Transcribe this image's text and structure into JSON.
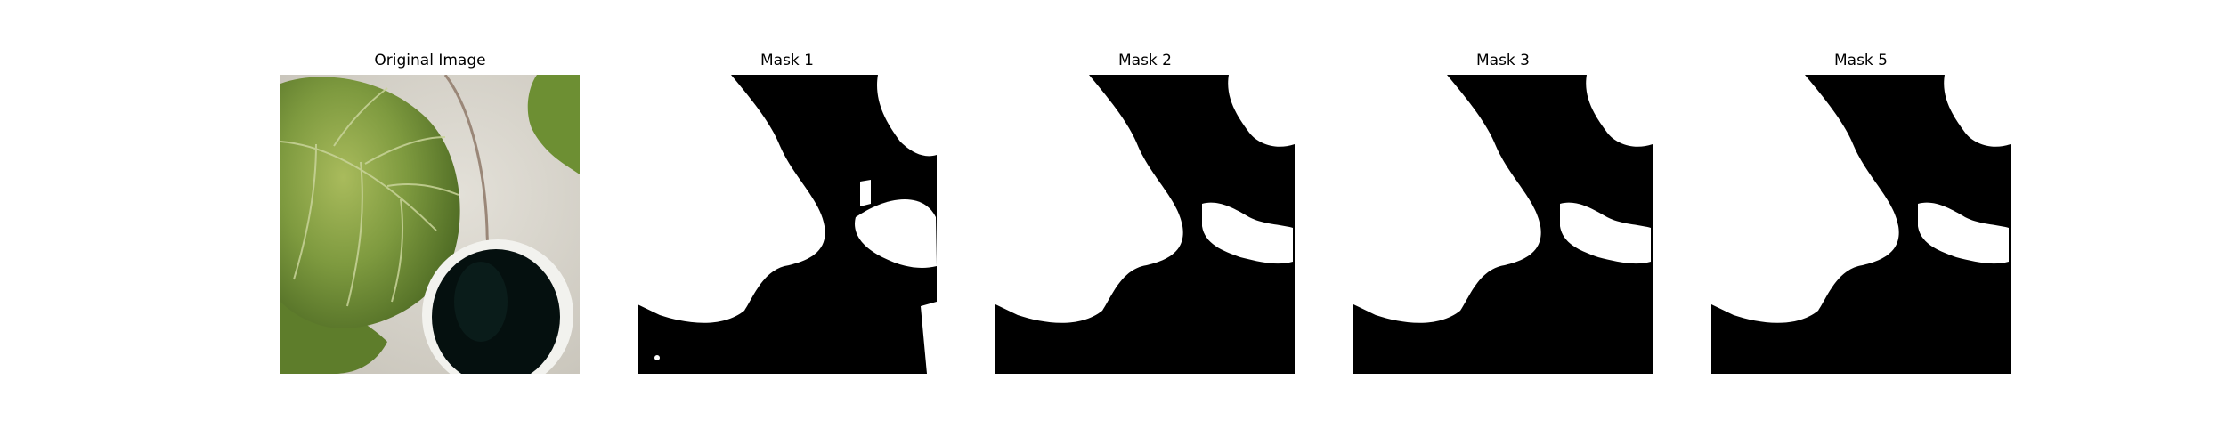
{
  "panels": [
    {
      "title": "Original Image"
    },
    {
      "title": "Mask 1"
    },
    {
      "title": "Mask 2"
    },
    {
      "title": "Mask 3"
    },
    {
      "title": "Mask 5"
    }
  ],
  "colors": {
    "mask_background": "#000000",
    "mask_foreground": "#ffffff",
    "leaf_green": "#7e9a3f",
    "leaf_dark": "#4d6a23",
    "surface_gray": "#d4d0c8",
    "pot_black": "#05100f"
  }
}
